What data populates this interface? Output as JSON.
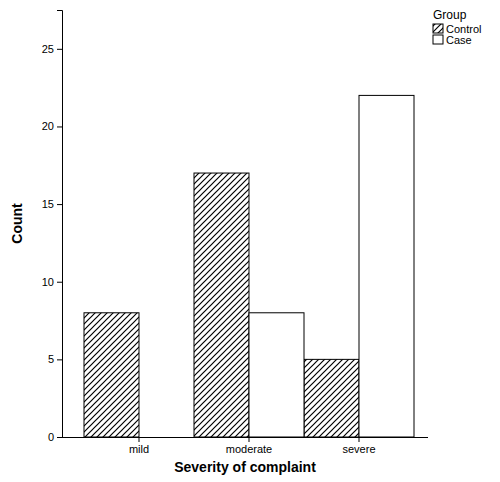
{
  "chart_data": {
    "type": "bar",
    "x_label": "Severity of complaint",
    "y_label": "Count",
    "legend_title": "Group",
    "categories": [
      "mild",
      "moderate",
      "severe"
    ],
    "series": [
      {
        "name": "Control",
        "color": "#000000",
        "values": [
          8,
          17,
          5
        ]
      },
      {
        "name": "Case",
        "color": "#ffffff",
        "values": [
          0,
          8,
          22
        ]
      }
    ],
    "ylim": [
      0,
      27.5
    ],
    "yticks": [
      0,
      5,
      10,
      15,
      20,
      25
    ],
    "legend": "top-right",
    "grid": false
  }
}
